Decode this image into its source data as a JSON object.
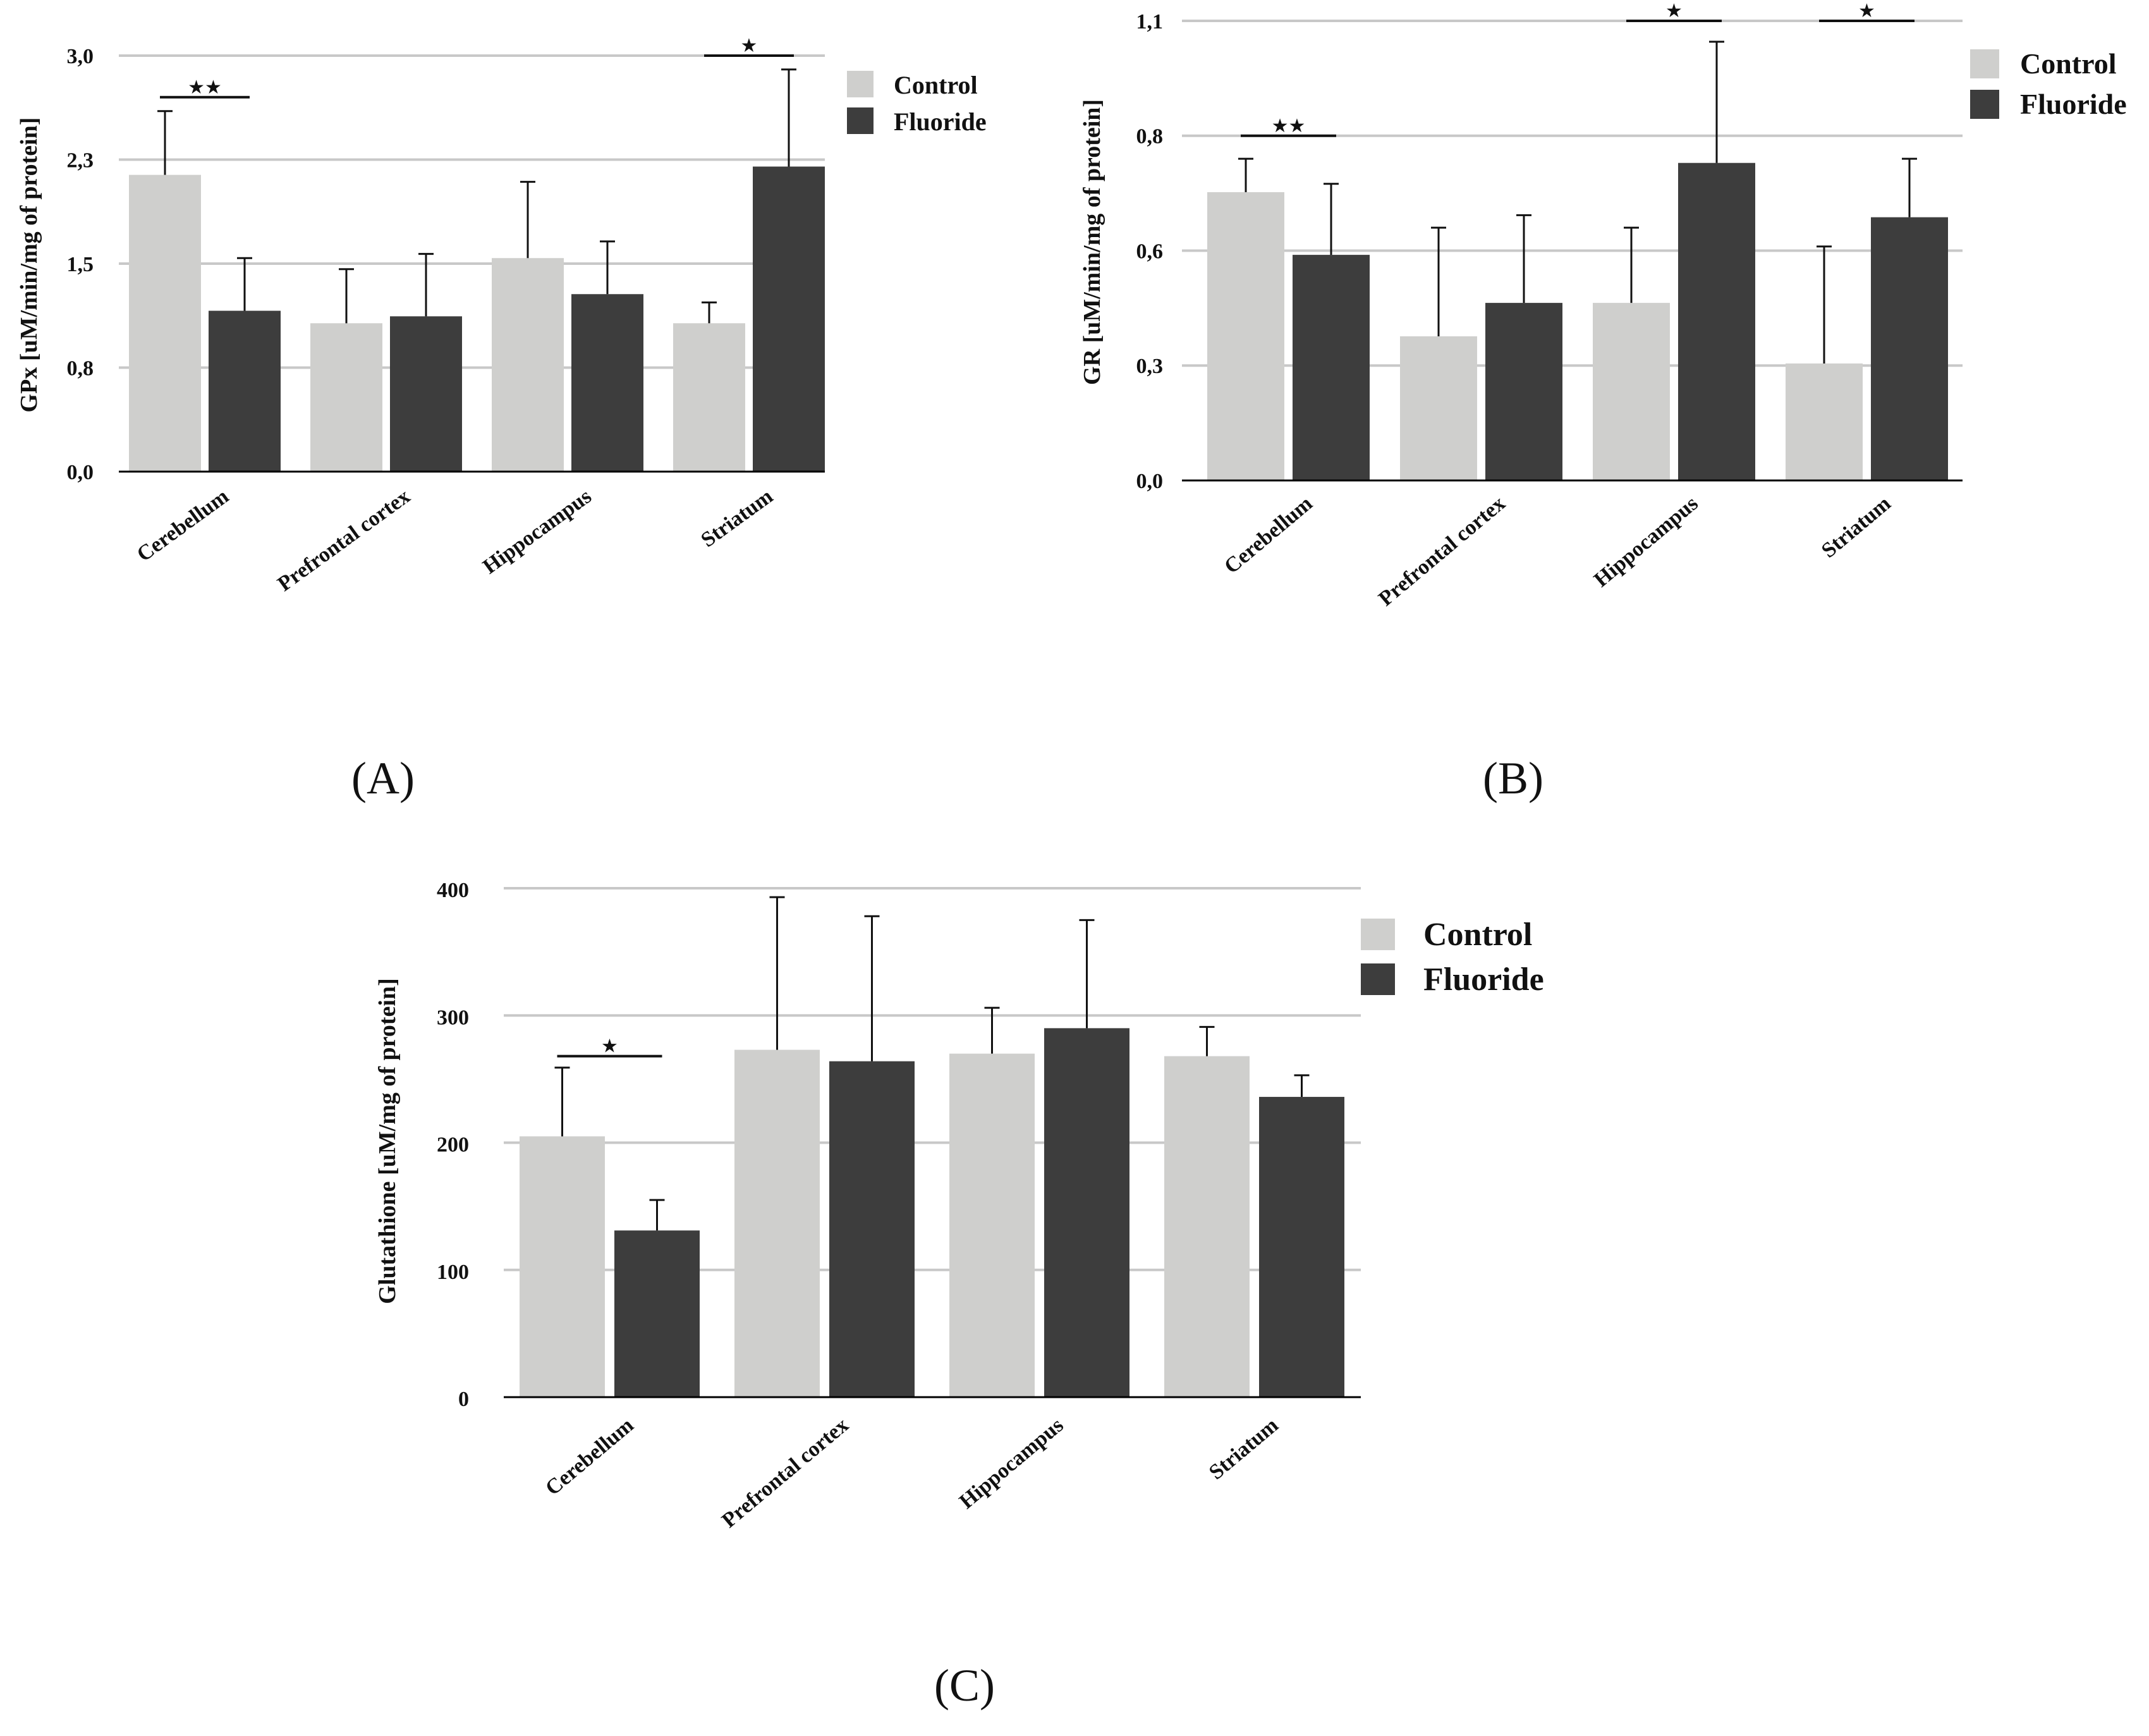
{
  "figure": {
    "panels": [
      "(A)",
      "(B)",
      "(C)"
    ]
  },
  "chart_data": [
    {
      "id": "A",
      "type": "bar",
      "panel_label": "(A)",
      "ylabel": "GPx [uM/min/mg of protein]",
      "categories": [
        "Cerebellum",
        "Prefrontal cortex",
        "Hippocampus",
        "Striatum"
      ],
      "series": [
        {
          "name": "Control",
          "color": "#cfcfcd",
          "values": [
            2.14,
            1.07,
            1.54,
            1.07
          ],
          "errors": [
            0.46,
            0.39,
            0.55,
            0.15
          ]
        },
        {
          "name": "Fluoride",
          "color": "#3d3d3d",
          "values": [
            1.16,
            1.12,
            1.28,
            2.2
          ],
          "errors": [
            0.38,
            0.45,
            0.38,
            0.7
          ]
        }
      ],
      "yticks": [
        "0,0",
        "0,8",
        "1,5",
        "2,3",
        "3,0"
      ],
      "ylim": [
        0,
        3.0
      ],
      "grid": true,
      "legend": "top-right",
      "significance": [
        {
          "category": "Cerebellum",
          "label": "★★",
          "y": 2.7
        },
        {
          "category": "Striatum",
          "label": "★",
          "y": 3.0
        }
      ]
    },
    {
      "id": "B",
      "type": "bar",
      "panel_label": "(B)",
      "ylabel": "GR [uM/min/mg of protein]",
      "categories": [
        "Cerebellum",
        "Prefrontal cortex",
        "Hippocampus",
        "Striatum"
      ],
      "series": [
        {
          "name": "Control",
          "color": "#cfcfcd",
          "values": [
            0.69,
            0.345,
            0.425,
            0.28
          ],
          "errors": [
            0.08,
            0.26,
            0.18,
            0.28
          ]
        },
        {
          "name": "Fluoride",
          "color": "#3d3d3d",
          "values": [
            0.54,
            0.425,
            0.76,
            0.63
          ],
          "errors": [
            0.17,
            0.21,
            0.29,
            0.14
          ]
        }
      ],
      "yticks": [
        "0,0",
        "0,3",
        "0,6",
        "0,8",
        "1,1"
      ],
      "ylim": [
        0,
        1.1
      ],
      "grid": true,
      "legend": "top-right",
      "significance": [
        {
          "category": "Cerebellum",
          "label": "★★",
          "y": 0.825
        },
        {
          "category": "Hippocampus",
          "label": "★",
          "y": 1.1
        },
        {
          "category": "Striatum",
          "label": "★",
          "y": 1.1
        }
      ]
    },
    {
      "id": "C",
      "type": "bar",
      "panel_label": "(C)",
      "ylabel": "Glutathione [uM/mg of protein]",
      "categories": [
        "Cerebellum",
        "Prefrontal cortex",
        "Hippocampus",
        "Striatum"
      ],
      "series": [
        {
          "name": "Control",
          "color": "#cfcfcd",
          "values": [
            205,
            273,
            270,
            268
          ],
          "errors": [
            54,
            120,
            36,
            23
          ]
        },
        {
          "name": "Fluoride",
          "color": "#3d3d3d",
          "values": [
            131,
            264,
            290,
            236
          ],
          "errors": [
            24,
            114,
            85,
            17
          ]
        }
      ],
      "yticks": [
        "0",
        "100",
        "200",
        "300",
        "400"
      ],
      "ylim": [
        0,
        400
      ],
      "grid": true,
      "legend": "top-right",
      "significance": [
        {
          "category": "Cerebellum",
          "label": "★",
          "y": 268
        }
      ]
    }
  ]
}
